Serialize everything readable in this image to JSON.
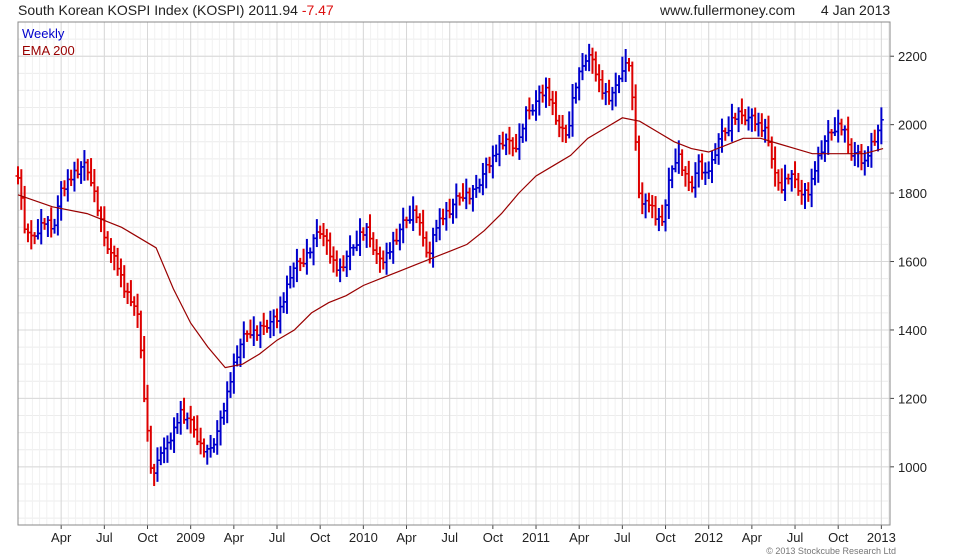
{
  "header": {
    "title": "South Korean KOSPI Index (KOSPI)",
    "last": "2011.94",
    "change": "-7.47",
    "site": "www.fullermoney.com",
    "date": "4 Jan 2013"
  },
  "copyright": "© 2013 Stockcube Research Ltd",
  "colors": {
    "up": "#0000cc",
    "down": "#dd0000",
    "ema": "#990000",
    "grid": "#d8d8d8"
  },
  "chart_data": {
    "type": "line",
    "xlim": [
      2008.0,
      2013.05
    ],
    "ylim": [
      830,
      2300
    ],
    "y_ticks": [
      1000,
      1200,
      1400,
      1600,
      1800,
      2000,
      2200
    ],
    "x_ticks": [
      {
        "label": "Apr",
        "x": 2008.25
      },
      {
        "label": "Jul",
        "x": 2008.5
      },
      {
        "label": "Oct",
        "x": 2008.75
      },
      {
        "label": "2009",
        "x": 2009.0
      },
      {
        "label": "Apr",
        "x": 2009.25
      },
      {
        "label": "Jul",
        "x": 2009.5
      },
      {
        "label": "Oct",
        "x": 2009.75
      },
      {
        "label": "2010",
        "x": 2010.0
      },
      {
        "label": "Apr",
        "x": 2010.25
      },
      {
        "label": "Jul",
        "x": 2010.5
      },
      {
        "label": "Oct",
        "x": 2010.75
      },
      {
        "label": "2011",
        "x": 2011.0
      },
      {
        "label": "Apr",
        "x": 2011.25
      },
      {
        "label": "Jul",
        "x": 2011.5
      },
      {
        "label": "Oct",
        "x": 2011.75
      },
      {
        "label": "2012",
        "x": 2012.0
      },
      {
        "label": "Apr",
        "x": 2012.25
      },
      {
        "label": "Jul",
        "x": 2012.5
      },
      {
        "label": "Oct",
        "x": 2012.75
      },
      {
        "label": "2013",
        "x": 2013.0
      }
    ],
    "legend": [
      "Weekly",
      "EMA 200"
    ],
    "series": [
      {
        "name": "Weekly",
        "points": [
          [
            2008.0,
            1850
          ],
          [
            2008.04,
            1700
          ],
          [
            2008.08,
            1660
          ],
          [
            2008.12,
            1700
          ],
          [
            2008.16,
            1720
          ],
          [
            2008.2,
            1690
          ],
          [
            2008.25,
            1800
          ],
          [
            2008.3,
            1840
          ],
          [
            2008.33,
            1860
          ],
          [
            2008.38,
            1880
          ],
          [
            2008.42,
            1850
          ],
          [
            2008.46,
            1760
          ],
          [
            2008.5,
            1670
          ],
          [
            2008.54,
            1620
          ],
          [
            2008.58,
            1580
          ],
          [
            2008.62,
            1510
          ],
          [
            2008.66,
            1490
          ],
          [
            2008.7,
            1420
          ],
          [
            2008.74,
            1150
          ],
          [
            2008.78,
            950
          ],
          [
            2008.82,
            1050
          ],
          [
            2008.86,
            1050
          ],
          [
            2008.9,
            1100
          ],
          [
            2008.94,
            1160
          ],
          [
            2008.98,
            1140
          ],
          [
            2009.02,
            1110
          ],
          [
            2009.06,
            1060
          ],
          [
            2009.1,
            1040
          ],
          [
            2009.14,
            1080
          ],
          [
            2009.18,
            1140
          ],
          [
            2009.22,
            1230
          ],
          [
            2009.26,
            1320
          ],
          [
            2009.3,
            1370
          ],
          [
            2009.34,
            1400
          ],
          [
            2009.38,
            1390
          ],
          [
            2009.42,
            1410
          ],
          [
            2009.46,
            1420
          ],
          [
            2009.5,
            1430
          ],
          [
            2009.54,
            1490
          ],
          [
            2009.58,
            1570
          ],
          [
            2009.62,
            1590
          ],
          [
            2009.66,
            1610
          ],
          [
            2009.7,
            1640
          ],
          [
            2009.74,
            1700
          ],
          [
            2009.78,
            1660
          ],
          [
            2009.82,
            1600
          ],
          [
            2009.86,
            1570
          ],
          [
            2009.9,
            1610
          ],
          [
            2009.94,
            1640
          ],
          [
            2009.98,
            1680
          ],
          [
            2010.02,
            1690
          ],
          [
            2010.06,
            1640
          ],
          [
            2010.1,
            1590
          ],
          [
            2010.14,
            1620
          ],
          [
            2010.18,
            1660
          ],
          [
            2010.22,
            1700
          ],
          [
            2010.26,
            1730
          ],
          [
            2010.3,
            1750
          ],
          [
            2010.34,
            1680
          ],
          [
            2010.38,
            1610
          ],
          [
            2010.42,
            1700
          ],
          [
            2010.46,
            1730
          ],
          [
            2010.5,
            1750
          ],
          [
            2010.54,
            1780
          ],
          [
            2010.58,
            1800
          ],
          [
            2010.62,
            1790
          ],
          [
            2010.66,
            1820
          ],
          [
            2010.7,
            1860
          ],
          [
            2010.74,
            1890
          ],
          [
            2010.78,
            1930
          ],
          [
            2010.82,
            1960
          ],
          [
            2010.86,
            1930
          ],
          [
            2010.9,
            1950
          ],
          [
            2010.94,
            2030
          ],
          [
            2010.98,
            2050
          ],
          [
            2011.02,
            2080
          ],
          [
            2011.06,
            2100
          ],
          [
            2011.1,
            2050
          ],
          [
            2011.14,
            1980
          ],
          [
            2011.18,
            1970
          ],
          [
            2011.22,
            2100
          ],
          [
            2011.26,
            2160
          ],
          [
            2011.3,
            2210
          ],
          [
            2011.34,
            2160
          ],
          [
            2011.38,
            2100
          ],
          [
            2011.42,
            2080
          ],
          [
            2011.46,
            2100
          ],
          [
            2011.5,
            2170
          ],
          [
            2011.54,
            2180
          ],
          [
            2011.58,
            1930
          ],
          [
            2011.6,
            1780
          ],
          [
            2011.62,
            1760
          ],
          [
            2011.66,
            1770
          ],
          [
            2011.7,
            1720
          ],
          [
            2011.74,
            1730
          ],
          [
            2011.78,
            1860
          ],
          [
            2011.82,
            1920
          ],
          [
            2011.86,
            1850
          ],
          [
            2011.9,
            1820
          ],
          [
            2011.94,
            1880
          ],
          [
            2011.98,
            1850
          ],
          [
            2012.02,
            1890
          ],
          [
            2012.06,
            1960
          ],
          [
            2012.1,
            1980
          ],
          [
            2012.14,
            2020
          ],
          [
            2012.18,
            2030
          ],
          [
            2012.22,
            2020
          ],
          [
            2012.26,
            2010
          ],
          [
            2012.3,
            1990
          ],
          [
            2012.34,
            1980
          ],
          [
            2012.38,
            1850
          ],
          [
            2012.42,
            1820
          ],
          [
            2012.46,
            1850
          ],
          [
            2012.5,
            1840
          ],
          [
            2012.54,
            1790
          ],
          [
            2012.58,
            1800
          ],
          [
            2012.62,
            1880
          ],
          [
            2012.66,
            1940
          ],
          [
            2012.7,
            1970
          ],
          [
            2012.74,
            2000
          ],
          [
            2012.78,
            1990
          ],
          [
            2012.82,
            1920
          ],
          [
            2012.86,
            1910
          ],
          [
            2012.9,
            1880
          ],
          [
            2012.94,
            1940
          ],
          [
            2012.98,
            1980
          ],
          [
            2013.01,
            2012
          ]
        ]
      },
      {
        "name": "EMA 200",
        "points": [
          [
            2008.0,
            1795
          ],
          [
            2008.2,
            1760
          ],
          [
            2008.4,
            1740
          ],
          [
            2008.6,
            1700
          ],
          [
            2008.8,
            1640
          ],
          [
            2008.9,
            1520
          ],
          [
            2009.0,
            1420
          ],
          [
            2009.1,
            1350
          ],
          [
            2009.2,
            1290
          ],
          [
            2009.3,
            1300
          ],
          [
            2009.4,
            1330
          ],
          [
            2009.5,
            1370
          ],
          [
            2009.6,
            1400
          ],
          [
            2009.7,
            1450
          ],
          [
            2009.8,
            1480
          ],
          [
            2009.9,
            1500
          ],
          [
            2010.0,
            1530
          ],
          [
            2010.1,
            1550
          ],
          [
            2010.2,
            1570
          ],
          [
            2010.3,
            1590
          ],
          [
            2010.4,
            1610
          ],
          [
            2010.5,
            1630
          ],
          [
            2010.6,
            1650
          ],
          [
            2010.7,
            1690
          ],
          [
            2010.8,
            1740
          ],
          [
            2010.9,
            1800
          ],
          [
            2011.0,
            1850
          ],
          [
            2011.1,
            1880
          ],
          [
            2011.2,
            1910
          ],
          [
            2011.3,
            1960
          ],
          [
            2011.4,
            1990
          ],
          [
            2011.5,
            2020
          ],
          [
            2011.6,
            2010
          ],
          [
            2011.7,
            1980
          ],
          [
            2011.8,
            1950
          ],
          [
            2011.9,
            1930
          ],
          [
            2012.0,
            1920
          ],
          [
            2012.1,
            1940
          ],
          [
            2012.2,
            1960
          ],
          [
            2012.3,
            1960
          ],
          [
            2012.4,
            1945
          ],
          [
            2012.5,
            1930
          ],
          [
            2012.6,
            1915
          ],
          [
            2012.7,
            1915
          ],
          [
            2012.8,
            1915
          ],
          [
            2012.9,
            1915
          ],
          [
            2013.01,
            1930
          ]
        ]
      }
    ]
  }
}
